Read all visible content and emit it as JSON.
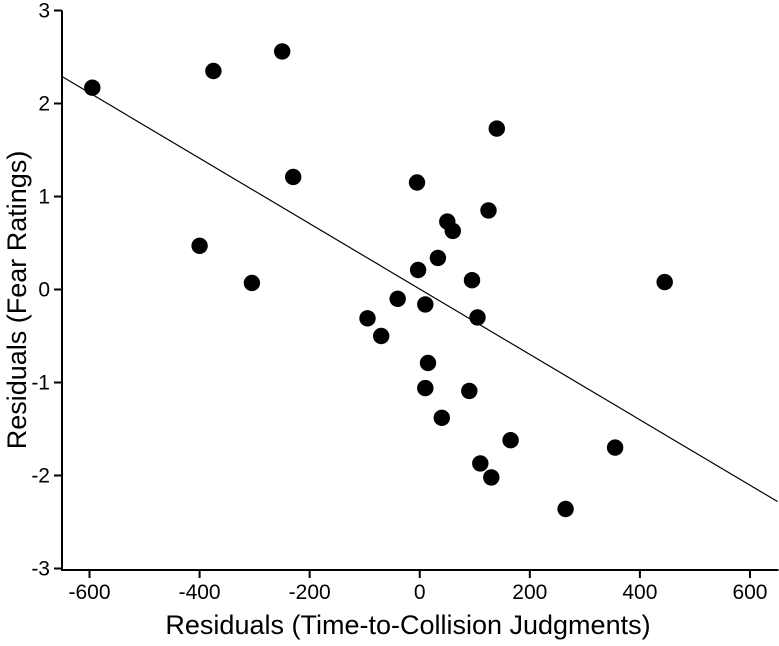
{
  "figure": {
    "background": "#ffffff",
    "ink_color": "#000000",
    "marker_color": "#000000"
  },
  "chart_data": {
    "type": "scatter",
    "title": "",
    "xlabel": "Residuals (Time-to-Collision Judgments)",
    "ylabel": "Residuals (Fear Ratings)",
    "xlim": [
      -650,
      650
    ],
    "ylim": [
      -3,
      3
    ],
    "x_ticks": [
      -600,
      -400,
      -200,
      0,
      200,
      400,
      600
    ],
    "y_ticks": [
      -3,
      -2,
      -1,
      0,
      1,
      2,
      3
    ],
    "grid": false,
    "legend": null,
    "tick_direction": "out",
    "marker": {
      "shape": "circle",
      "fill": "#000000",
      "radius_px": 8.2
    },
    "points": [
      [
        -595,
        2.17
      ],
      [
        -375,
        2.35
      ],
      [
        -250,
        2.56
      ],
      [
        -400,
        0.47
      ],
      [
        -305,
        0.07
      ],
      [
        -230,
        1.21
      ],
      [
        -5,
        1.15
      ],
      [
        140,
        1.73
      ],
      [
        125,
        0.85
      ],
      [
        50,
        0.73
      ],
      [
        60,
        0.63
      ],
      [
        33,
        0.34
      ],
      [
        -3,
        0.21
      ],
      [
        95,
        0.1
      ],
      [
        -40,
        -0.1
      ],
      [
        10,
        -0.16
      ],
      [
        -95,
        -0.31
      ],
      [
        105,
        -0.3
      ],
      [
        -70,
        -0.5
      ],
      [
        15,
        -0.79
      ],
      [
        10,
        -1.06
      ],
      [
        90,
        -1.09
      ],
      [
        40,
        -1.38
      ],
      [
        165,
        -1.62
      ],
      [
        110,
        -1.87
      ],
      [
        130,
        -2.02
      ],
      [
        265,
        -2.36
      ],
      [
        355,
        -1.7
      ],
      [
        445,
        0.08
      ]
    ],
    "regression_line": {
      "x1": -650,
      "y1": 2.29,
      "x2": 650,
      "y2": -2.28
    }
  }
}
